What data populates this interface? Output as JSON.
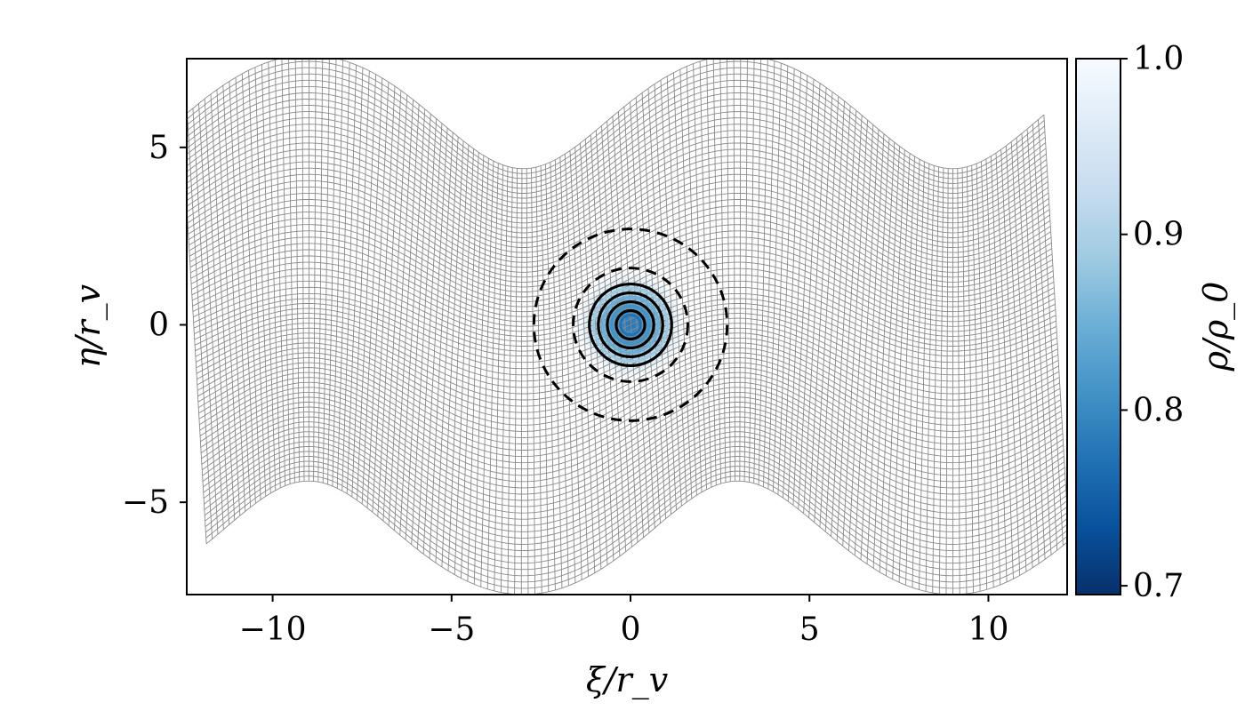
{
  "chart_data": {
    "type": "heatmap",
    "title": "",
    "xlabel": "ξ/r_v",
    "ylabel": "η/r_v",
    "xlim": [
      -12.4,
      12.2
    ],
    "ylim": [
      -7.6,
      7.5
    ],
    "x_ticks": [
      {
        "value": -10,
        "label": "−10"
      },
      {
        "value": -5,
        "label": "−5"
      },
      {
        "value": 0,
        "label": "0"
      },
      {
        "value": 5,
        "label": "5"
      },
      {
        "value": 10,
        "label": "10"
      }
    ],
    "y_ticks": [
      {
        "value": -5,
        "label": "−5"
      },
      {
        "value": 0,
        "label": "0"
      },
      {
        "value": 5,
        "label": "5"
      }
    ],
    "mesh": {
      "xi_range": [
        -12.2,
        11.9
      ],
      "eta_range": [
        -6,
        6
      ],
      "wave_amplitude": 1.6,
      "wave_period": 12,
      "wave_phase_peak_xi": 3,
      "line_color": "#8a8a8a"
    },
    "vortex": {
      "center": [
        0,
        0
      ],
      "density_min": 0.7,
      "solid_contour_radii": [
        0.4,
        0.65,
        0.9,
        1.15
      ],
      "dashed_contour_radii": [
        1.6,
        2.7
      ],
      "contour_color": "#000000"
    },
    "colorbar": {
      "label": "ρ/ρ_0",
      "range": [
        0.695,
        1.0
      ],
      "ticks": [
        {
          "value": 0.7,
          "label": "0.7"
        },
        {
          "value": 0.8,
          "label": "0.8"
        },
        {
          "value": 0.9,
          "label": "0.9"
        },
        {
          "value": 1.0,
          "label": "1.0"
        }
      ],
      "colors": [
        "#08306b",
        "#08519c",
        "#2171b5",
        "#4292c6",
        "#6baed6",
        "#9ecae1",
        "#c6dbef",
        "#deebf7",
        "#f7fbff"
      ]
    }
  }
}
